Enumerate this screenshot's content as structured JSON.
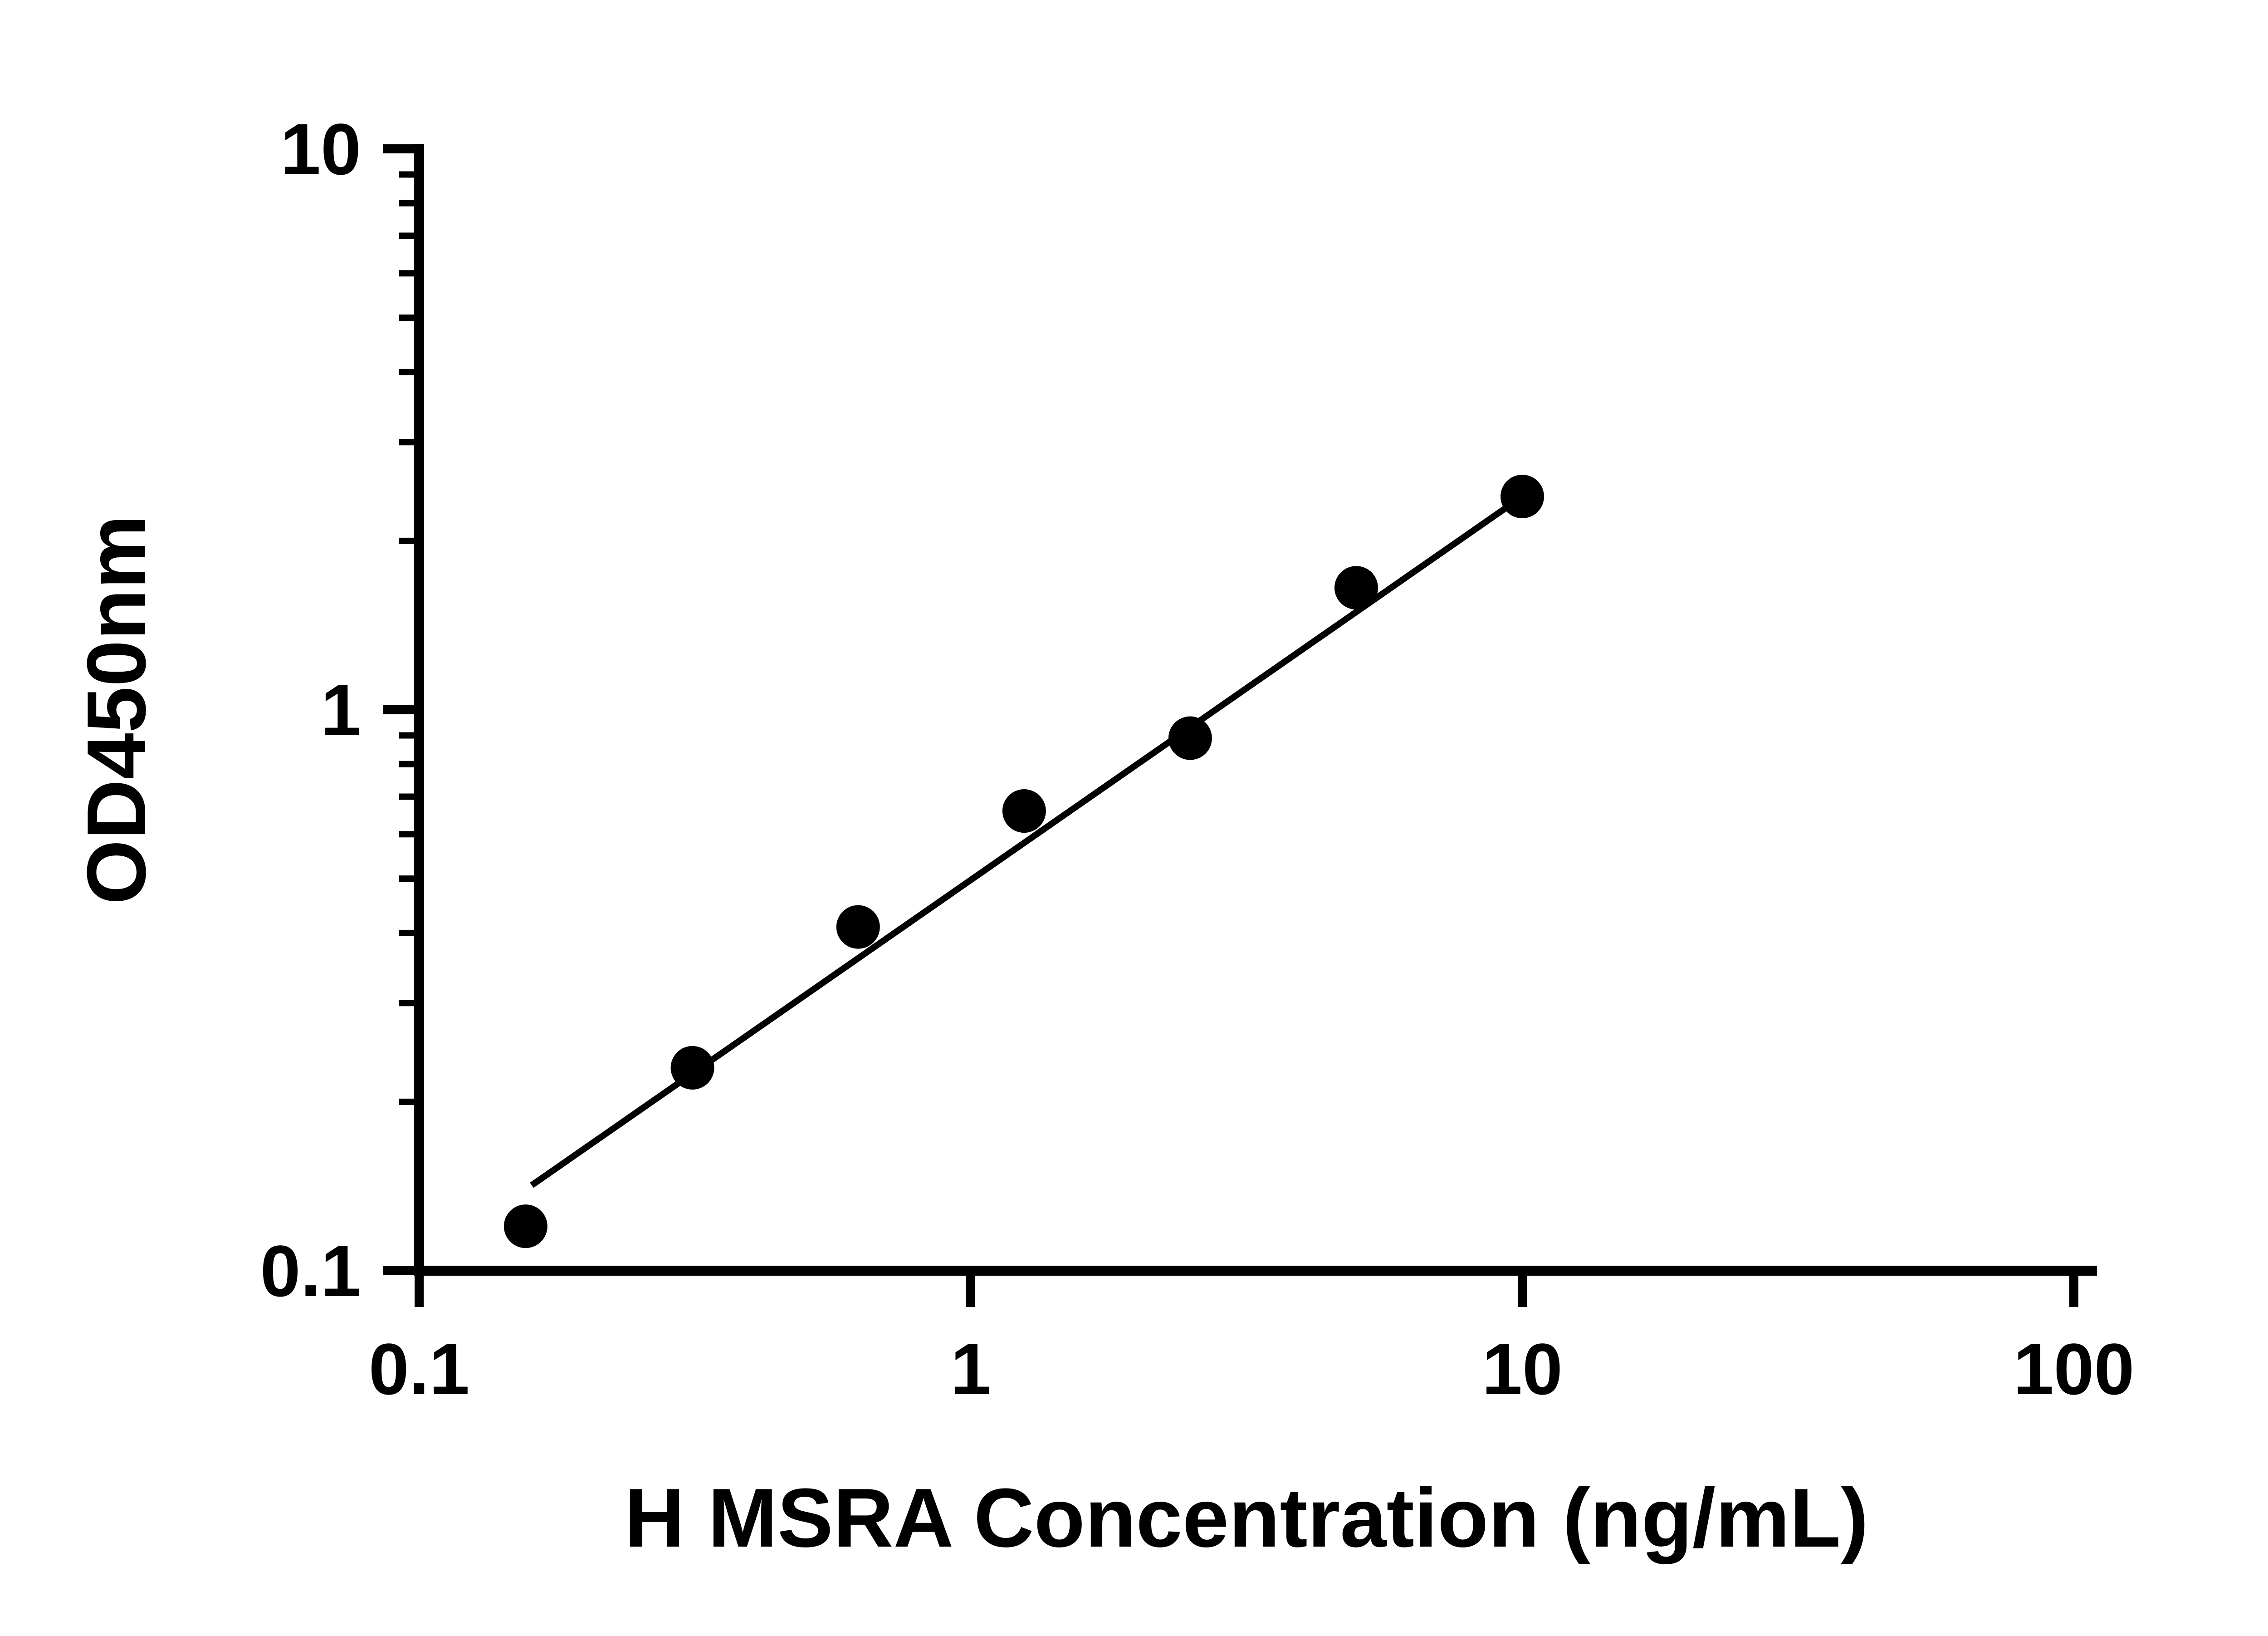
{
  "page": {
    "background_color": "#ffffff",
    "foreground_color": "#000000"
  },
  "chart_data": {
    "type": "scatter",
    "title": "",
    "xlabel": "H MSRA Concentration (ng/mL)",
    "ylabel": "OD450nm",
    "x_scale": "log",
    "y_scale": "log",
    "xlim": [
      0.1,
      100
    ],
    "ylim": [
      0.1,
      10
    ],
    "x_ticks": [
      0.1,
      1,
      10,
      100
    ],
    "x_tick_labels": [
      "0.1",
      "1",
      "10",
      "100"
    ],
    "y_ticks": [
      0.1,
      1,
      10
    ],
    "y_tick_labels": [
      "0.1",
      "1",
      "10"
    ],
    "y_minor_ticks": [
      0.2,
      0.3,
      0.4,
      0.5,
      0.6,
      0.7,
      0.8,
      0.9,
      2,
      3,
      4,
      5,
      6,
      7,
      8,
      9
    ],
    "grid": false,
    "legend": null,
    "marker_color": "#000000",
    "line_color": "#000000",
    "points": [
      {
        "x": 0.156,
        "y": 0.12
      },
      {
        "x": 0.313,
        "y": 0.23
      },
      {
        "x": 0.625,
        "y": 0.41
      },
      {
        "x": 1.25,
        "y": 0.66
      },
      {
        "x": 2.5,
        "y": 0.89
      },
      {
        "x": 5.0,
        "y": 1.65
      },
      {
        "x": 10.0,
        "y": 2.4
      }
    ],
    "trend_line": {
      "x1": 0.16,
      "y1": 0.142,
      "x2": 10.0,
      "y2": 2.4
    }
  }
}
